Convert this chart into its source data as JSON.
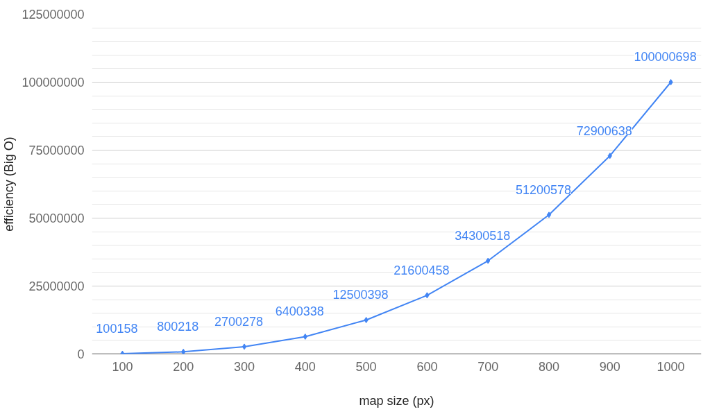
{
  "chart_data": {
    "type": "line",
    "xlabel": "map size (px)",
    "ylabel": "efficiency (Big O)",
    "x": [
      100,
      200,
      300,
      400,
      500,
      600,
      700,
      800,
      900,
      1000
    ],
    "series": [
      {
        "color": "#4285f4",
        "values": [
          100158,
          800218,
          2700278,
          6400338,
          12500398,
          21600458,
          34300518,
          51200578,
          72900638,
          100000698
        ]
      }
    ],
    "xlim": [
      50,
      1050
    ],
    "xticks": [
      100,
      200,
      300,
      400,
      500,
      600,
      700,
      800,
      900,
      1000
    ],
    "ylim": [
      0,
      125000000
    ],
    "yticks": [
      0,
      25000000,
      50000000,
      75000000,
      100000000,
      125000000
    ],
    "grid": "y",
    "marker": "diamond",
    "line_style": "solid",
    "data_labels": true
  }
}
